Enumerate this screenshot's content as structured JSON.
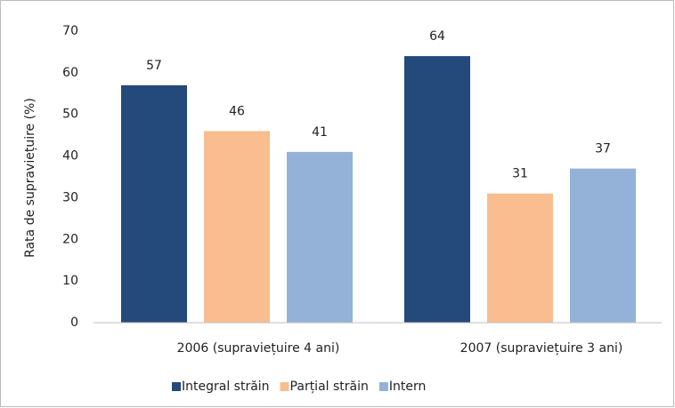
{
  "chart_data": {
    "type": "bar",
    "y_label": "Rata de supraviețuire (%)",
    "categories": [
      "2006 (supraviețuire 4 ani)",
      "2007 (supraviețuire 3 ani)"
    ],
    "series": [
      {
        "name": "Integral străin",
        "color": "#234a7b",
        "values": [
          57,
          64
        ]
      },
      {
        "name": "Parțial străin",
        "color": "#f9bd8f",
        "values": [
          46,
          31
        ]
      },
      {
        "name": "Intern",
        "color": "#94b2d8",
        "values": [
          41,
          37
        ]
      }
    ],
    "ylim": [
      0,
      70
    ],
    "yticks": [
      0,
      10,
      20,
      30,
      40,
      50,
      60,
      70
    ],
    "grid": false,
    "legend": "bottom"
  }
}
